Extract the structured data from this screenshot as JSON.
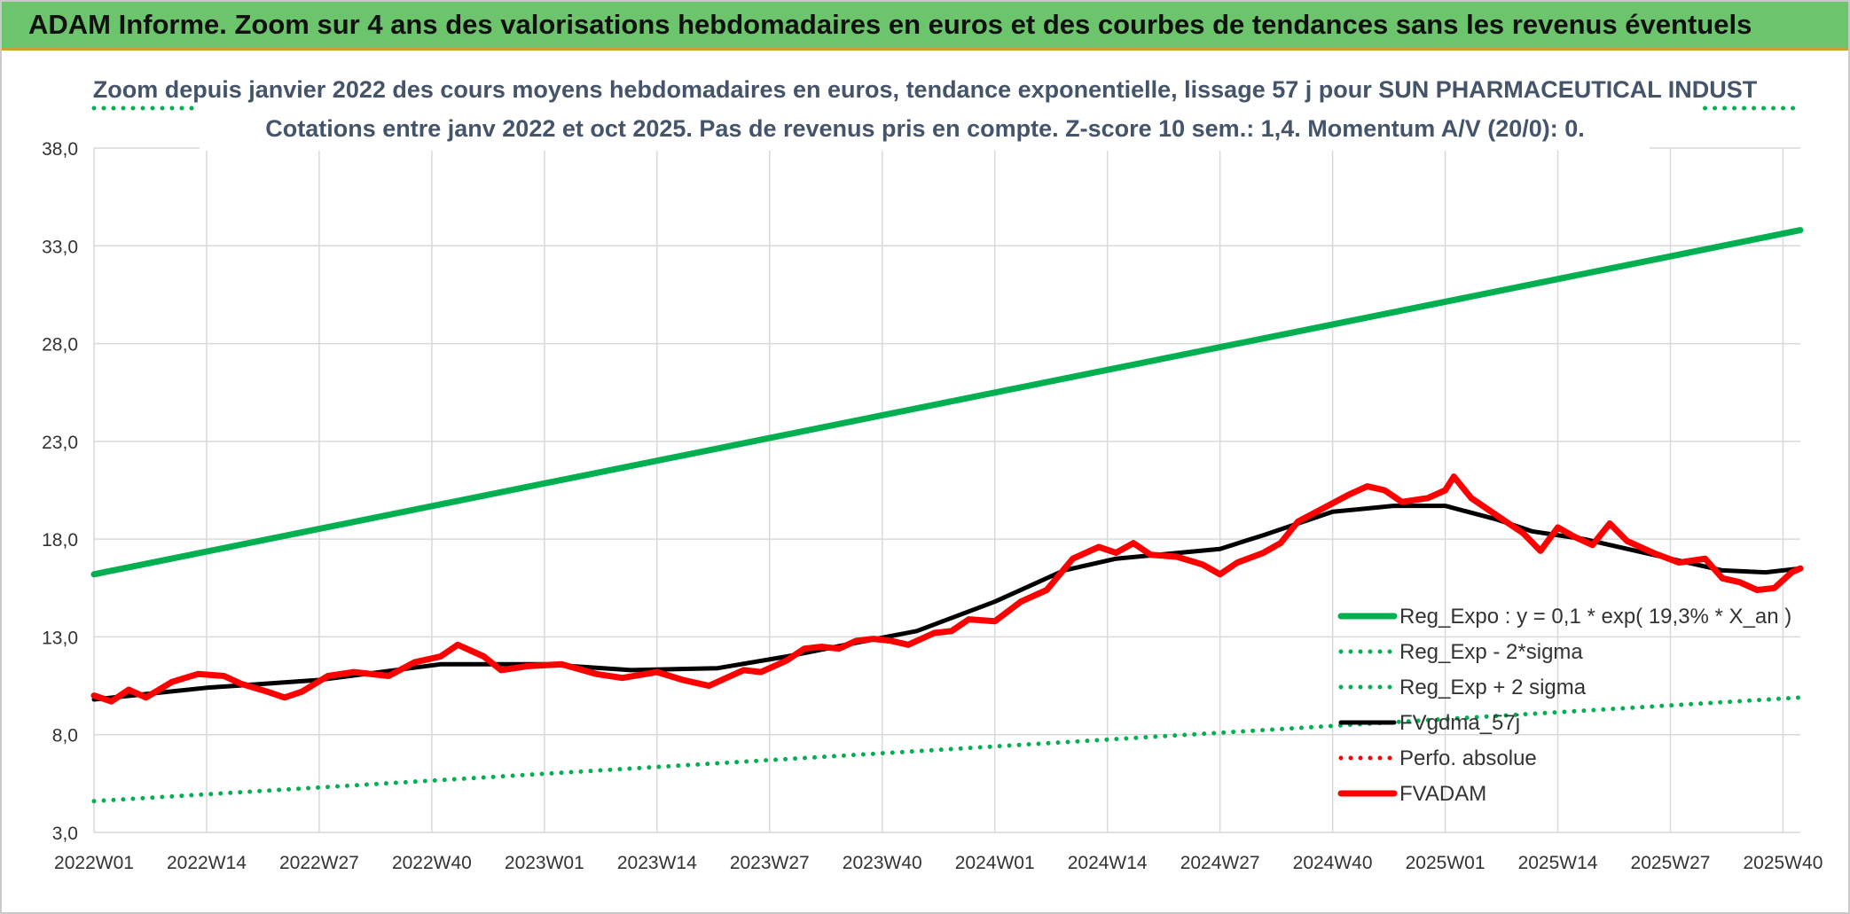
{
  "banner": {
    "title": "ADAM Informe. Zoom sur 4 ans des valorisations hebdomadaires en euros et des courbes de tendances sans les revenus éventuels",
    "color": "#6cc46c"
  },
  "chart_data": {
    "type": "line",
    "title_line1": "Zoom depuis janvier 2022 des cours moyens hebdomadaires en euros, tendance exponentielle, lissage 57 j pour SUN PHARMACEUTICAL INDUST",
    "title_line2": "Cotations entre janv 2022 et oct 2025. Pas de revenus pris en compte. Z-score 10 sem.: 1,4. Momentum A/V (20/0): 0.",
    "ylim": [
      3,
      38
    ],
    "yticks": [
      "3,0",
      "8,0",
      "13,0",
      "18,0",
      "23,0",
      "28,0",
      "33,0",
      "38,0"
    ],
    "ytick_values": [
      3,
      8,
      13,
      18,
      23,
      28,
      33,
      38
    ],
    "x_count": 198,
    "xticks": [
      "2022W01",
      "2022W14",
      "2022W27",
      "2022W40",
      "2023W01",
      "2023W14",
      "2023W27",
      "2023W40",
      "2024W01",
      "2024W14",
      "2024W27",
      "2024W40",
      "2025W01",
      "2025W14",
      "2025W27",
      "2025W40"
    ],
    "xtick_index": [
      0,
      13,
      26,
      39,
      52,
      65,
      78,
      91,
      104,
      117,
      130,
      143,
      156,
      169,
      182,
      195
    ],
    "grid": true,
    "legend_position": "bottom-right",
    "series": [
      {
        "name": "Reg_Expo : y = 0,1 * exp( 19,3% *  X_an )",
        "style": "solid-thick",
        "color": "#00b050",
        "values": [
          [
            0,
            16.2
          ],
          [
            197,
            33.8
          ]
        ]
      },
      {
        "name": "Reg_Exp - 2*sigma",
        "style": "dotted",
        "color": "#00b050",
        "values": [
          [
            0,
            4.6
          ],
          [
            197,
            9.9
          ]
        ]
      },
      {
        "name": "Reg_Exp + 2 sigma",
        "style": "dotted",
        "color": "#00b050",
        "values": [
          [
            0,
            40.0
          ],
          [
            12,
            40.0
          ],
          [
            186,
            40.0
          ],
          [
            197,
            40.0
          ]
        ],
        "clipped_above_plot": true
      },
      {
        "name": "FVgdma_57j",
        "style": "solid",
        "color": "#000000",
        "values": [
          [
            0,
            9.8
          ],
          [
            13,
            10.4
          ],
          [
            26,
            10.8
          ],
          [
            40,
            11.6
          ],
          [
            52,
            11.6
          ],
          [
            62,
            11.3
          ],
          [
            72,
            11.4
          ],
          [
            80,
            12.0
          ],
          [
            88,
            12.7
          ],
          [
            95,
            13.3
          ],
          [
            104,
            14.8
          ],
          [
            112,
            16.4
          ],
          [
            118,
            17.0
          ],
          [
            130,
            17.5
          ],
          [
            135,
            18.2
          ],
          [
            143,
            19.4
          ],
          [
            150,
            19.7
          ],
          [
            156,
            19.7
          ],
          [
            162,
            19.0
          ],
          [
            166,
            18.4
          ],
          [
            172,
            18.0
          ],
          [
            182,
            17.0
          ],
          [
            188,
            16.4
          ],
          [
            193,
            16.3
          ],
          [
            197,
            16.5
          ]
        ]
      },
      {
        "name": "Perfo. absolue",
        "style": "dotted",
        "color": "#ff0000",
        "values": []
      },
      {
        "name": "FVADAM",
        "style": "solid-thick",
        "color": "#ff0000",
        "values": [
          [
            0,
            10.0
          ],
          [
            2,
            9.7
          ],
          [
            4,
            10.3
          ],
          [
            6,
            9.9
          ],
          [
            9,
            10.7
          ],
          [
            12,
            11.1
          ],
          [
            15,
            11.0
          ],
          [
            17,
            10.6
          ],
          [
            20,
            10.2
          ],
          [
            22,
            9.9
          ],
          [
            24,
            10.2
          ],
          [
            27,
            11.0
          ],
          [
            30,
            11.2
          ],
          [
            34,
            11.0
          ],
          [
            37,
            11.7
          ],
          [
            40,
            12.0
          ],
          [
            42,
            12.6
          ],
          [
            45,
            12.0
          ],
          [
            47,
            11.3
          ],
          [
            50,
            11.5
          ],
          [
            54,
            11.6
          ],
          [
            58,
            11.1
          ],
          [
            61,
            10.9
          ],
          [
            65,
            11.2
          ],
          [
            68,
            10.8
          ],
          [
            71,
            10.5
          ],
          [
            73,
            10.9
          ],
          [
            75,
            11.3
          ],
          [
            77,
            11.2
          ],
          [
            80,
            11.8
          ],
          [
            82,
            12.4
          ],
          [
            84,
            12.5
          ],
          [
            86,
            12.4
          ],
          [
            88,
            12.8
          ],
          [
            90,
            12.9
          ],
          [
            92,
            12.8
          ],
          [
            94,
            12.6
          ],
          [
            97,
            13.2
          ],
          [
            99,
            13.3
          ],
          [
            101,
            13.9
          ],
          [
            104,
            13.8
          ],
          [
            107,
            14.8
          ],
          [
            110,
            15.4
          ],
          [
            113,
            17.0
          ],
          [
            116,
            17.6
          ],
          [
            118,
            17.3
          ],
          [
            120,
            17.8
          ],
          [
            122,
            17.2
          ],
          [
            125,
            17.1
          ],
          [
            128,
            16.7
          ],
          [
            130,
            16.2
          ],
          [
            132,
            16.8
          ],
          [
            135,
            17.3
          ],
          [
            137,
            17.8
          ],
          [
            139,
            18.9
          ],
          [
            142,
            19.6
          ],
          [
            145,
            20.3
          ],
          [
            147,
            20.7
          ],
          [
            149,
            20.5
          ],
          [
            151,
            19.9
          ],
          [
            154,
            20.1
          ],
          [
            156,
            20.5
          ],
          [
            157,
            21.2
          ],
          [
            159,
            20.1
          ],
          [
            162,
            19.2
          ],
          [
            165,
            18.3
          ],
          [
            167,
            17.4
          ],
          [
            169,
            18.6
          ],
          [
            171,
            18.1
          ],
          [
            173,
            17.7
          ],
          [
            175,
            18.8
          ],
          [
            177,
            17.9
          ],
          [
            180,
            17.3
          ],
          [
            183,
            16.8
          ],
          [
            186,
            17.0
          ],
          [
            188,
            16.0
          ],
          [
            190,
            15.8
          ],
          [
            192,
            15.4
          ],
          [
            194,
            15.5
          ],
          [
            196,
            16.3
          ],
          [
            197,
            16.5
          ]
        ]
      }
    ]
  }
}
